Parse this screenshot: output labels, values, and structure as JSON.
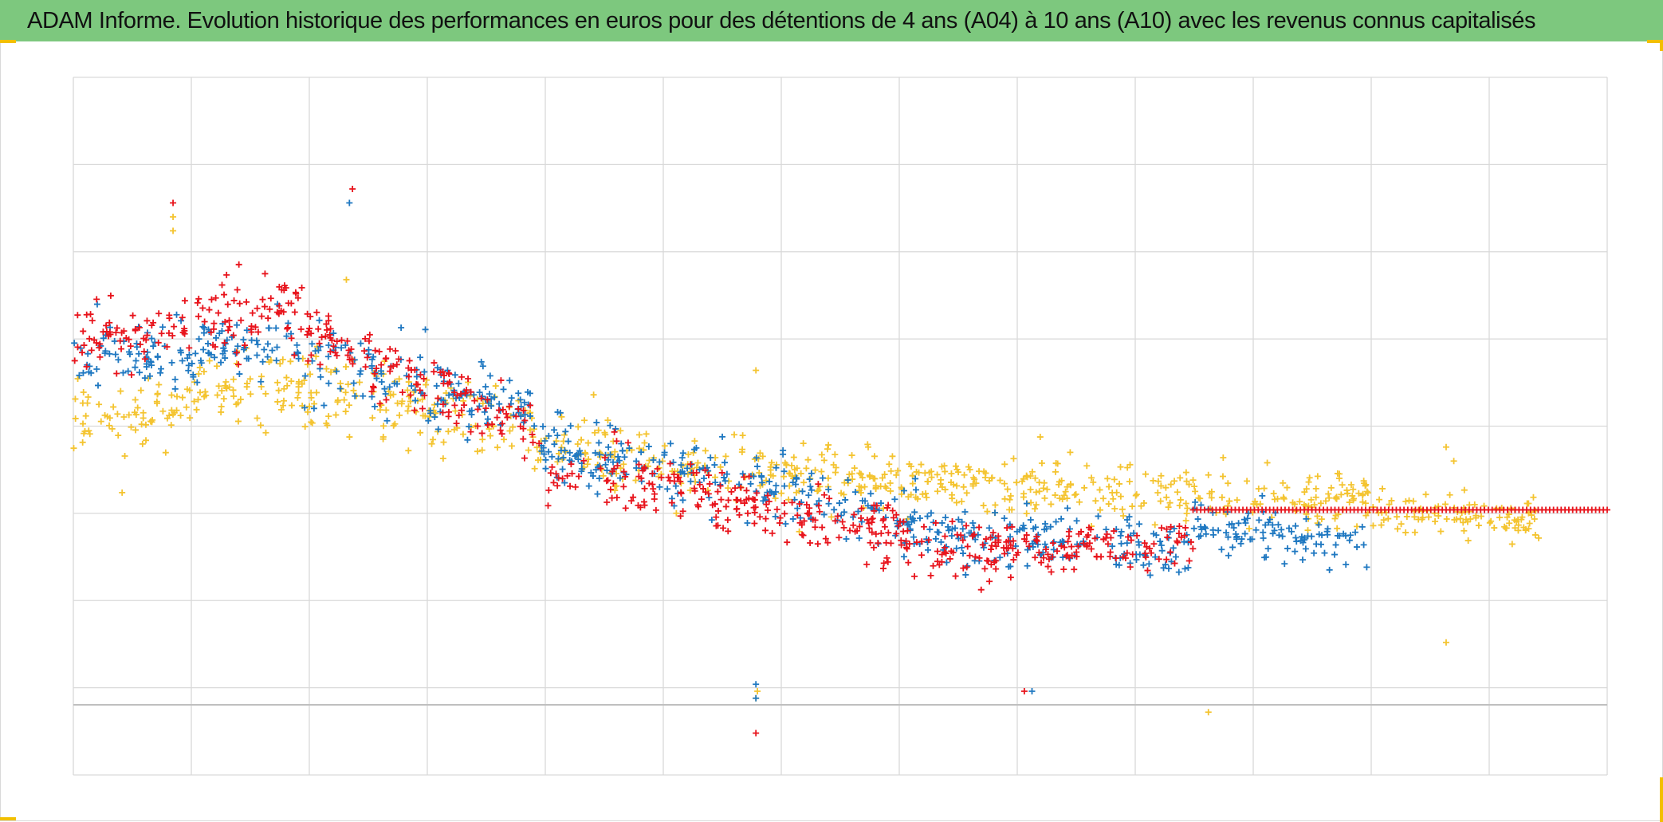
{
  "title": "ADAM Informe. Evolution historique des performances en euros pour des détentions de 4 ans (A04) à 10 ans (A10) avec les revenus connus capitalisés",
  "colors": {
    "title_bg": "#7dc87e",
    "grid": "#d9d9d9",
    "axis": "#bfbfbf",
    "corner": "#f2c000"
  },
  "chart_data": {
    "type": "scatter",
    "marker": "plus",
    "x_grid_count": 13,
    "y_grid_count": 8,
    "grid": true,
    "legend": "none",
    "series": [
      {
        "color": "#f4c430",
        "segments": [
          {
            "x": [
              0.0,
              0.12
            ],
            "mean": [
              0.5,
              0.56
            ],
            "sd": 0.06
          },
          {
            "x": [
              0.12,
              0.3
            ],
            "mean": [
              0.56,
              0.5
            ],
            "sd": 0.06
          },
          {
            "x": [
              0.3,
              0.55
            ],
            "mean": [
              0.47,
              0.42
            ],
            "sd": 0.05
          },
          {
            "x": [
              0.55,
              0.73
            ],
            "mean": [
              0.42,
              0.4
            ],
            "sd": 0.045
          },
          {
            "x": [
              0.73,
              0.845
            ],
            "mean": [
              0.4,
              0.4
            ],
            "sd": 0.045
          },
          {
            "x": [
              0.845,
              0.96
            ],
            "mean": [
              0.38,
              0.36
            ],
            "sd": 0.035
          }
        ],
        "outliers": [
          {
            "x": 0.065,
            "y": 0.8
          },
          {
            "x": 0.065,
            "y": 0.78
          },
          {
            "x": 0.178,
            "y": 0.71
          },
          {
            "x": 0.445,
            "y": 0.58
          },
          {
            "x": 0.446,
            "y": 0.12
          },
          {
            "x": 0.445,
            "y": 0.11
          },
          {
            "x": 0.74,
            "y": 0.43
          },
          {
            "x": 0.74,
            "y": 0.09
          },
          {
            "x": 0.895,
            "y": 0.47
          },
          {
            "x": 0.9,
            "y": 0.45
          },
          {
            "x": 0.895,
            "y": 0.19
          }
        ]
      },
      {
        "color": "#1f78c1",
        "segments": [
          {
            "x": [
              0.0,
              0.15
            ],
            "mean": [
              0.59,
              0.62
            ],
            "sd": 0.05
          },
          {
            "x": [
              0.15,
              0.3
            ],
            "mean": [
              0.6,
              0.52
            ],
            "sd": 0.06
          },
          {
            "x": [
              0.3,
              0.55
            ],
            "mean": [
              0.48,
              0.36
            ],
            "sd": 0.055
          },
          {
            "x": [
              0.55,
              0.73
            ],
            "mean": [
              0.35,
              0.32
            ],
            "sd": 0.05
          },
          {
            "x": [
              0.73,
              0.845
            ],
            "mean": [
              0.36,
              0.33
            ],
            "sd": 0.035
          }
        ],
        "outliers": [
          {
            "x": 0.18,
            "y": 0.82
          },
          {
            "x": 0.445,
            "y": 0.13
          },
          {
            "x": 0.445,
            "y": 0.11
          },
          {
            "x": 0.625,
            "y": 0.12
          }
        ]
      },
      {
        "color": "#e8141c",
        "segments": [
          {
            "x": [
              0.0,
              0.15
            ],
            "mean": [
              0.62,
              0.68
            ],
            "sd": 0.055
          },
          {
            "x": [
              0.15,
              0.3
            ],
            "mean": [
              0.64,
              0.5
            ],
            "sd": 0.05
          },
          {
            "x": [
              0.3,
              0.55
            ],
            "mean": [
              0.45,
              0.34
            ],
            "sd": 0.05
          },
          {
            "x": [
              0.55,
              0.73
            ],
            "mean": [
              0.32,
              0.33
            ],
            "sd": 0.04
          }
        ],
        "flat": {
          "x": [
            0.73,
            1.0
          ],
          "y": 0.38
        },
        "outliers": [
          {
            "x": 0.065,
            "y": 0.82
          },
          {
            "x": 0.182,
            "y": 0.84
          },
          {
            "x": 0.445,
            "y": 0.06
          },
          {
            "x": 0.62,
            "y": 0.12
          }
        ]
      }
    ]
  }
}
